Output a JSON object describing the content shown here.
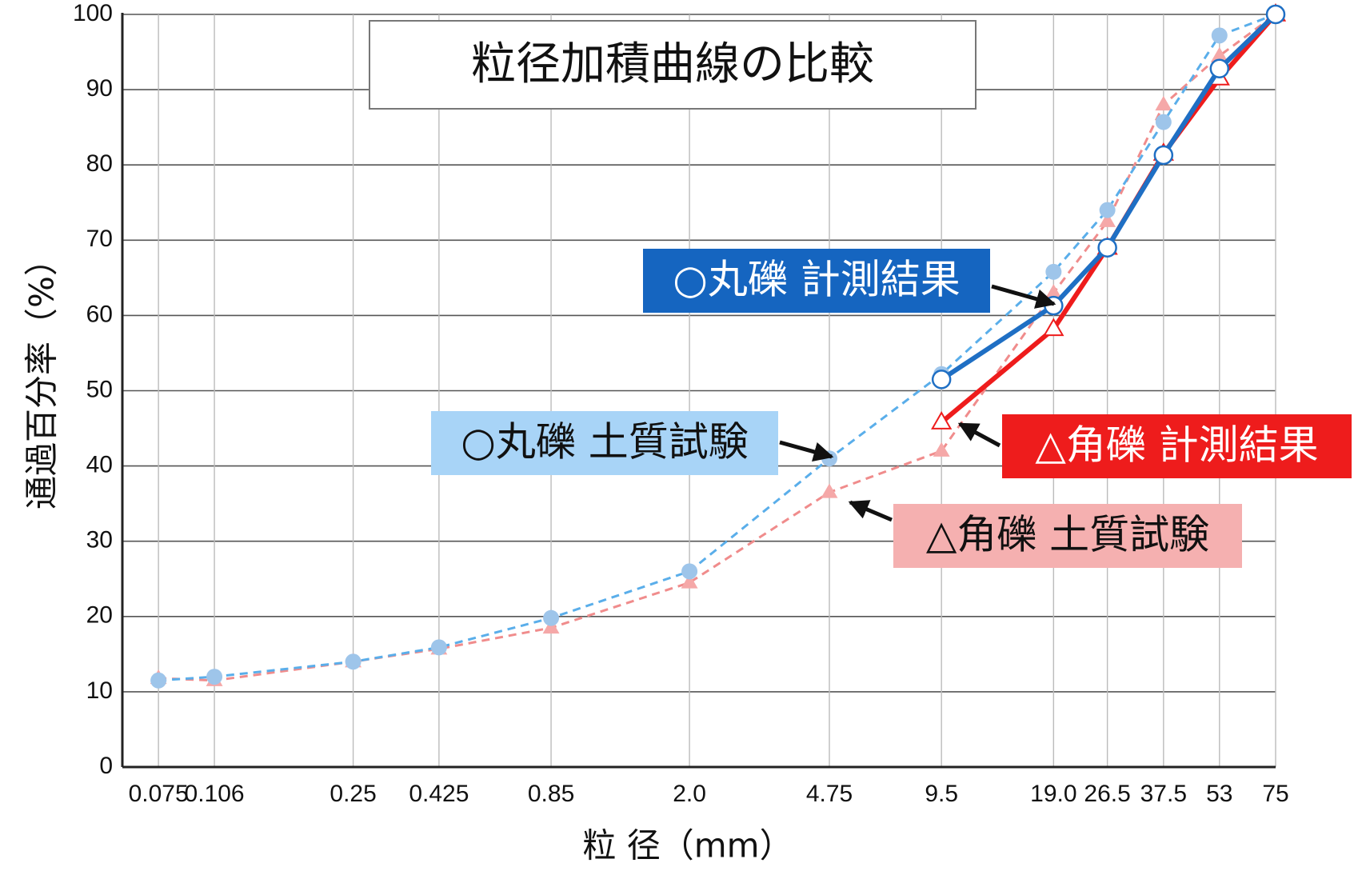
{
  "chart_data": {
    "type": "line",
    "title": "粒径加積曲線の比較",
    "xlabel": "粒 径（mm）",
    "ylabel": "通過百分率（%）",
    "categories": [
      "0.075",
      "0.106",
      "0.25",
      "0.425",
      "0.85",
      "2.0",
      "4.75",
      "9.5",
      "19.0",
      "26.5",
      "37.5",
      "53",
      "75"
    ],
    "y_ticks": [
      "0",
      "10",
      "20",
      "30",
      "40",
      "50",
      "60",
      "70",
      "80",
      "90",
      "100"
    ],
    "ylim": [
      0,
      100
    ],
    "x_scale": "log",
    "grid": true,
    "series": [
      {
        "name": "○丸礫 土質試験",
        "style": "dashed",
        "marker": "filled-circle",
        "color": "#5aaeea",
        "marker_color": "#9ec5ea",
        "x": [
          0.075,
          0.106,
          0.25,
          0.425,
          0.85,
          2.0,
          4.75,
          9.5,
          19.0,
          26.5,
          37.5,
          53,
          75
        ],
        "values": [
          11.5,
          12.0,
          14.0,
          15.9,
          19.8,
          26.0,
          41.0,
          52.2,
          65.8,
          74.0,
          85.7,
          97.2,
          100
        ]
      },
      {
        "name": "△角礫 土質試験",
        "style": "dashed",
        "marker": "filled-triangle",
        "color": "#f08c8c",
        "marker_color": "#f5a8a8",
        "x": [
          0.075,
          0.106,
          0.25,
          0.425,
          0.85,
          2.0,
          4.75,
          9.5,
          19.0,
          26.5,
          37.5,
          53,
          75
        ],
        "values": [
          11.8,
          11.5,
          14.0,
          15.7,
          18.5,
          24.5,
          36.5,
          42.0,
          63.0,
          72.5,
          88.0,
          94.5,
          100
        ]
      },
      {
        "name": "○丸礫 計測結果",
        "style": "solid",
        "marker": "open-circle",
        "color": "#1f6fc4",
        "x": [
          9.5,
          19.0,
          26.5,
          37.5,
          53,
          75
        ],
        "values": [
          51.5,
          61.3,
          69.0,
          81.3,
          92.8,
          100
        ]
      },
      {
        "name": "△角礫 計測結果",
        "style": "solid",
        "marker": "open-triangle",
        "color": "#ee1c1c",
        "x": [
          9.5,
          19.0,
          26.5,
          37.5,
          53,
          75
        ],
        "values": [
          45.8,
          58.2,
          69.0,
          81.5,
          91.5,
          100
        ]
      }
    ],
    "callouts": [
      {
        "text": "○丸礫 計測結果",
        "bg": "#1565c0",
        "fg": "#ffffff",
        "series": 2,
        "point_x": 19.0
      },
      {
        "text": "○丸礫 土質試験",
        "bg": "#a8d4f7",
        "fg": "#111111",
        "series": 0,
        "point_x": 4.75
      },
      {
        "text": "△角礫 計測結果",
        "bg": "#ee1c1c",
        "fg": "#ffffff",
        "series": 3,
        "point_x": 9.5
      },
      {
        "text": "△角礫 土質試験",
        "bg": "#f5b0b0",
        "fg": "#111111",
        "series": 1,
        "point_x": 4.75
      }
    ]
  }
}
